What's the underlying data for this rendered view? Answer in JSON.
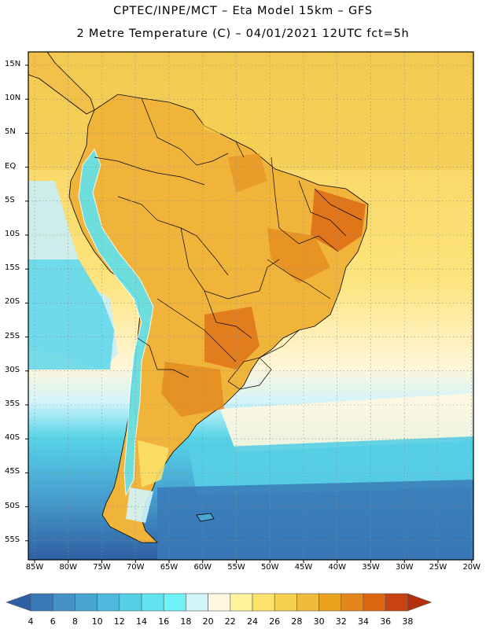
{
  "header": {
    "line1": "CPTEC/INPE/MCT –  Eta Model 15km – GFS",
    "line2": "2 Metre Temperature (C) – 04/01/2021 12UTC fct=5h"
  },
  "map": {
    "lat_labels": [
      "15N",
      "10N",
      "5N",
      "EQ",
      "5S",
      "10S",
      "15S",
      "20S",
      "25S",
      "30S",
      "35S",
      "40S",
      "45S",
      "50S",
      "55S"
    ],
    "lon_labels": [
      "85W",
      "80W",
      "75W",
      "70W",
      "65W",
      "60W",
      "55W",
      "50W",
      "45W",
      "40W",
      "35W",
      "30W",
      "25W",
      "20W"
    ]
  },
  "colorbar": {
    "ticks": [
      "4",
      "6",
      "8",
      "10",
      "12",
      "14",
      "16",
      "18",
      "20",
      "22",
      "24",
      "26",
      "28",
      "30",
      "32",
      "34",
      "36",
      "38"
    ],
    "colors": [
      "#2e5fa3",
      "#3a7ab8",
      "#4592c6",
      "#49a6d3",
      "#4fb9dd",
      "#56cfe6",
      "#60e3ef",
      "#6ff3f7",
      "#d2f4fb",
      "#fff7df",
      "#fff29a",
      "#fce36c",
      "#f6d050",
      "#eebb3a",
      "#e9a11e",
      "#e3861c",
      "#dc6512",
      "#c84310",
      "#b52f0c"
    ]
  }
}
